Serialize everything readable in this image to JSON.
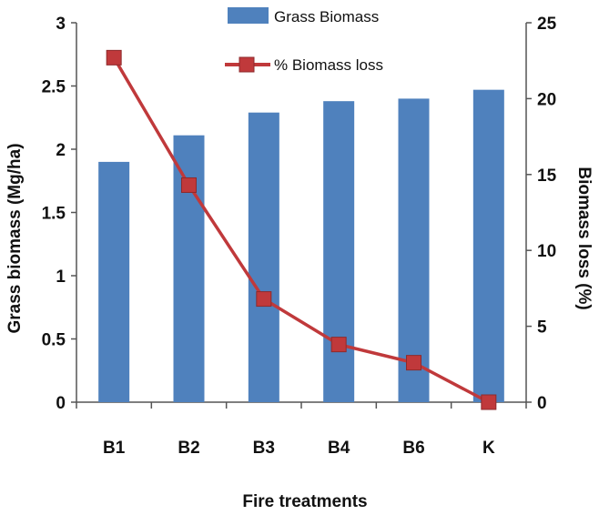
{
  "chart_data": {
    "type": "bar",
    "categories": [
      "B1",
      "B2",
      "B3",
      "B4",
      "B6",
      "K"
    ],
    "series": [
      {
        "name": "Grass Biomass",
        "type": "bar",
        "axis": "left",
        "color": "#4f81bd",
        "values": [
          1.9,
          2.11,
          2.29,
          2.38,
          2.4,
          2.47
        ]
      },
      {
        "name": "% Biomass loss",
        "type": "line",
        "axis": "right",
        "color": "#c0393b",
        "marker": "square",
        "values": [
          22.7,
          14.3,
          6.8,
          3.8,
          2.6,
          0
        ]
      }
    ],
    "xlabel": "Fire treatments",
    "ylabel": "Grass biomass (Mg/ha)",
    "y2label": "Biomass loss (%)",
    "ylim": [
      0,
      3
    ],
    "y2lim": [
      0,
      25
    ],
    "yticks": [
      "0",
      "0.5",
      "1",
      "1.5",
      "2",
      "2.5",
      "3"
    ],
    "y2ticks": [
      "0",
      "5",
      "10",
      "15",
      "20",
      "25"
    ],
    "grid": false,
    "legend_position": "top-center"
  }
}
